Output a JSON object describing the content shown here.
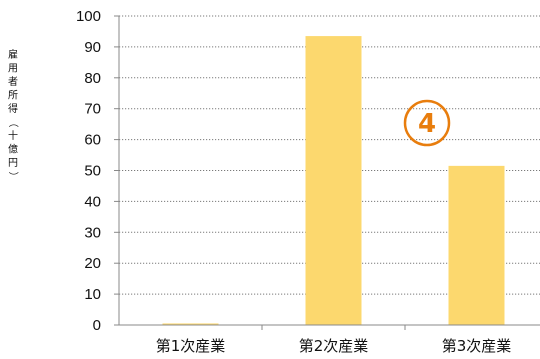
{
  "chart_data": {
    "type": "bar",
    "title": "",
    "xlabel": "",
    "ylabel": "雇用者所得（十億円）",
    "categories": [
      "第1次産業",
      "第2次産業",
      "第3次産業"
    ],
    "values": [
      0.5,
      93.5,
      51.5
    ],
    "ylim": [
      0,
      100
    ],
    "yticks": [
      0,
      10,
      20,
      30,
      40,
      50,
      60,
      70,
      80,
      90,
      100
    ],
    "grid": true,
    "bar_color": "#fcd86e",
    "annotation": "4"
  },
  "colors": {
    "bar": "#fcd86e",
    "axis": "#888888",
    "grid": "#7a7a7a",
    "marker": "#e87d0d"
  }
}
